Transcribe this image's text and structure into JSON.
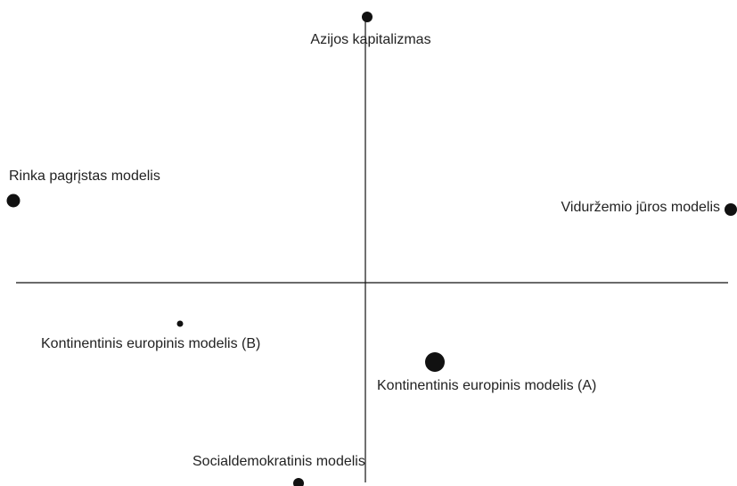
{
  "nodes": [
    {
      "label": "Azijos kapitalizmas"
    },
    {
      "label": "Rinka pagrįstas modelis"
    },
    {
      "label": "Viduržemio jūros modelis"
    },
    {
      "label": "Kontinentinis europinis modelis (B)"
    },
    {
      "label": "Kontinentinis europinis modelis (A)"
    },
    {
      "label": "Socialdemokratinis modelis"
    }
  ]
}
